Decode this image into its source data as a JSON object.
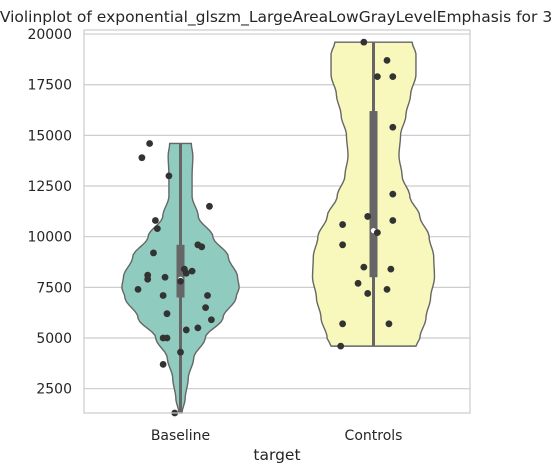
{
  "chart_data": {
    "type": "violin",
    "title": "Violinplot of exponential_glszm_LargeAreaLowGrayLevelEmphasis for 3",
    "xlabel": "target",
    "ylabel": "",
    "categories": [
      "Baseline",
      "Controls"
    ],
    "ylim": [
      1300,
      20200
    ],
    "yticks": [
      2500,
      5000,
      7500,
      10000,
      12500,
      15000,
      17500,
      20000
    ],
    "ytick_labels": [
      "2500",
      "5000",
      "7500",
      "10000",
      "12500",
      "15000",
      "17500",
      "20000"
    ],
    "grid": "horizontal",
    "violins": [
      {
        "category": "Baseline",
        "color": "#8fcbbf",
        "min": 1300,
        "max": 14600,
        "q1": 7000,
        "median": 7900,
        "q3": 9600,
        "profile": [
          [
            1300,
            0.02
          ],
          [
            2000,
            0.06
          ],
          [
            3000,
            0.1
          ],
          [
            4000,
            0.17
          ],
          [
            5000,
            0.32
          ],
          [
            6000,
            0.55
          ],
          [
            7000,
            0.72
          ],
          [
            7500,
            0.76
          ],
          [
            8000,
            0.74
          ],
          [
            9000,
            0.62
          ],
          [
            10000,
            0.42
          ],
          [
            11000,
            0.23
          ],
          [
            12000,
            0.15
          ],
          [
            13000,
            0.15
          ],
          [
            14000,
            0.16
          ],
          [
            14600,
            0.14
          ]
        ],
        "points": [
          [
            1300,
            -0.03
          ],
          [
            3700,
            -0.09
          ],
          [
            4300,
            0.0
          ],
          [
            5000,
            -0.09
          ],
          [
            5000,
            -0.07
          ],
          [
            5400,
            0.03
          ],
          [
            5500,
            0.09
          ],
          [
            5900,
            0.16
          ],
          [
            6200,
            -0.07
          ],
          [
            6500,
            0.13
          ],
          [
            7100,
            0.14
          ],
          [
            7100,
            -0.09
          ],
          [
            7400,
            -0.22
          ],
          [
            7800,
            0.0
          ],
          [
            7900,
            -0.17
          ],
          [
            8000,
            -0.08
          ],
          [
            8100,
            -0.17
          ],
          [
            8200,
            0.03
          ],
          [
            8300,
            0.06
          ],
          [
            8400,
            0.02
          ],
          [
            9200,
            -0.14
          ],
          [
            9500,
            0.11
          ],
          [
            9600,
            0.09
          ],
          [
            10400,
            -0.12
          ],
          [
            10800,
            -0.13
          ],
          [
            11500,
            0.15
          ],
          [
            13000,
            -0.06
          ],
          [
            13900,
            -0.2
          ],
          [
            14600,
            -0.16
          ]
        ]
      },
      {
        "category": "Controls",
        "color": "#f9f8bc",
        "min": 4600,
        "max": 19600,
        "q1": 8000,
        "median": 10300,
        "q3": 16200,
        "profile": [
          [
            4600,
            0.55
          ],
          [
            5000,
            0.6
          ],
          [
            6000,
            0.68
          ],
          [
            7000,
            0.74
          ],
          [
            8000,
            0.79
          ],
          [
            9000,
            0.78
          ],
          [
            10000,
            0.72
          ],
          [
            11000,
            0.6
          ],
          [
            12000,
            0.47
          ],
          [
            13000,
            0.37
          ],
          [
            14000,
            0.33
          ],
          [
            15000,
            0.35
          ],
          [
            16000,
            0.42
          ],
          [
            17000,
            0.48
          ],
          [
            18000,
            0.55
          ],
          [
            19000,
            0.55
          ],
          [
            19600,
            0.5
          ]
        ],
        "points": [
          [
            4600,
            -0.17
          ],
          [
            5700,
            -0.16
          ],
          [
            5700,
            0.08
          ],
          [
            7200,
            -0.03
          ],
          [
            7400,
            0.07
          ],
          [
            7700,
            -0.08
          ],
          [
            8400,
            0.09
          ],
          [
            8500,
            -0.05
          ],
          [
            9600,
            -0.16
          ],
          [
            10200,
            0.02
          ],
          [
            10600,
            -0.16
          ],
          [
            10800,
            0.1
          ],
          [
            11000,
            -0.03
          ],
          [
            12100,
            0.1
          ],
          [
            15400,
            0.1
          ],
          [
            17900,
            0.02
          ],
          [
            17900,
            0.1
          ],
          [
            18700,
            0.07
          ],
          [
            19600,
            -0.05
          ]
        ]
      }
    ]
  }
}
